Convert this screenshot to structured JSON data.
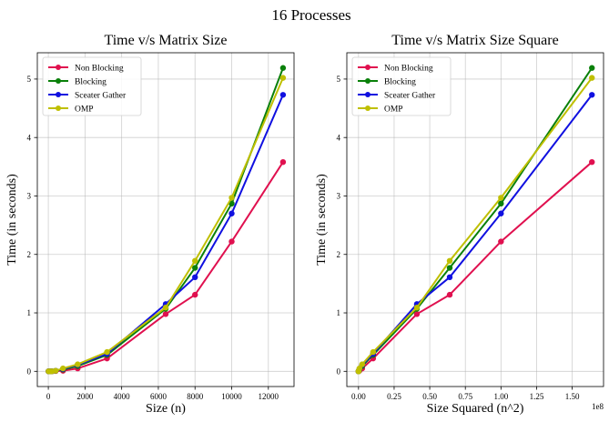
{
  "figure": {
    "suptitle": "16 Processes"
  },
  "chart_data": [
    {
      "type": "line",
      "title": "Time v/s Matrix Size",
      "xlabel": "Size (n)",
      "ylabel": "Time (in seconds)",
      "x": [
        10,
        100,
        200,
        400,
        800,
        1600,
        3200,
        6400,
        8000,
        10000,
        12800
      ],
      "xlim": [
        -600,
        13400
      ],
      "ylim": [
        -0.26,
        5.45
      ],
      "xticks": [
        0,
        2000,
        4000,
        6000,
        8000,
        10000,
        12000
      ],
      "xtick_labels": [
        "0",
        "2000",
        "4000",
        "6000",
        "8000",
        "10000",
        "12000"
      ],
      "yticks": [
        0,
        1,
        2,
        3,
        4,
        5
      ],
      "ytick_labels": [
        "0",
        "1",
        "2",
        "3",
        "4",
        "5"
      ],
      "x_offset_label": "",
      "grid": true,
      "legend": "top-left",
      "series": [
        {
          "name": "Non Blocking",
          "color": "#e0104f",
          "values": [
            0.0,
            0.0,
            0.0,
            0.005,
            0.01,
            0.05,
            0.22,
            0.98,
            1.31,
            2.22,
            3.58
          ]
        },
        {
          "name": "Blocking",
          "color": "#0a800a",
          "values": [
            0.0,
            0.0,
            0.0,
            0.01,
            0.03,
            0.09,
            0.28,
            1.07,
            1.77,
            2.87,
            5.19
          ]
        },
        {
          "name": "Sceater Gather",
          "color": "#1010e0",
          "values": [
            0.0,
            0.0,
            0.0,
            0.01,
            0.04,
            0.11,
            0.3,
            1.15,
            1.61,
            2.7,
            4.73
          ]
        },
        {
          "name": "OMP",
          "color": "#bfbf00",
          "values": [
            0.0,
            0.0,
            0.0,
            0.01,
            0.05,
            0.12,
            0.33,
            1.09,
            1.89,
            2.97,
            5.02
          ]
        }
      ]
    },
    {
      "type": "line",
      "title": "Time v/s Matrix Size Square",
      "xlabel": "Size Squared (n^2)",
      "ylabel": "Time (in seconds)",
      "x": [
        100,
        10000,
        40000,
        160000,
        640000,
        2560000,
        10240000,
        40960000,
        64000000,
        100000000,
        163840000
      ],
      "xlim": [
        -8200000,
        172000000
      ],
      "ylim": [
        -0.26,
        5.45
      ],
      "xticks": [
        0,
        25000000,
        50000000,
        75000000,
        100000000,
        125000000,
        150000000
      ],
      "xtick_labels": [
        "0.00",
        "0.25",
        "0.50",
        "0.75",
        "1.00",
        "1.25",
        "1.50"
      ],
      "yticks": [
        0,
        1,
        2,
        3,
        4,
        5
      ],
      "ytick_labels": [
        "0",
        "1",
        "2",
        "3",
        "4",
        "5"
      ],
      "x_offset_label": "1e8",
      "grid": true,
      "legend": "top-left",
      "series": [
        {
          "name": "Non Blocking",
          "color": "#e0104f",
          "values": [
            0.0,
            0.0,
            0.0,
            0.005,
            0.01,
            0.05,
            0.22,
            0.98,
            1.31,
            2.22,
            3.58
          ]
        },
        {
          "name": "Blocking",
          "color": "#0a800a",
          "values": [
            0.0,
            0.0,
            0.0,
            0.01,
            0.03,
            0.09,
            0.28,
            1.07,
            1.77,
            2.87,
            5.19
          ]
        },
        {
          "name": "Sceater Gather",
          "color": "#1010e0",
          "values": [
            0.0,
            0.0,
            0.0,
            0.01,
            0.04,
            0.11,
            0.3,
            1.15,
            1.61,
            2.7,
            4.73
          ]
        },
        {
          "name": "OMP",
          "color": "#bfbf00",
          "values": [
            0.0,
            0.0,
            0.0,
            0.01,
            0.05,
            0.12,
            0.33,
            1.09,
            1.89,
            2.97,
            5.02
          ]
        }
      ]
    }
  ]
}
